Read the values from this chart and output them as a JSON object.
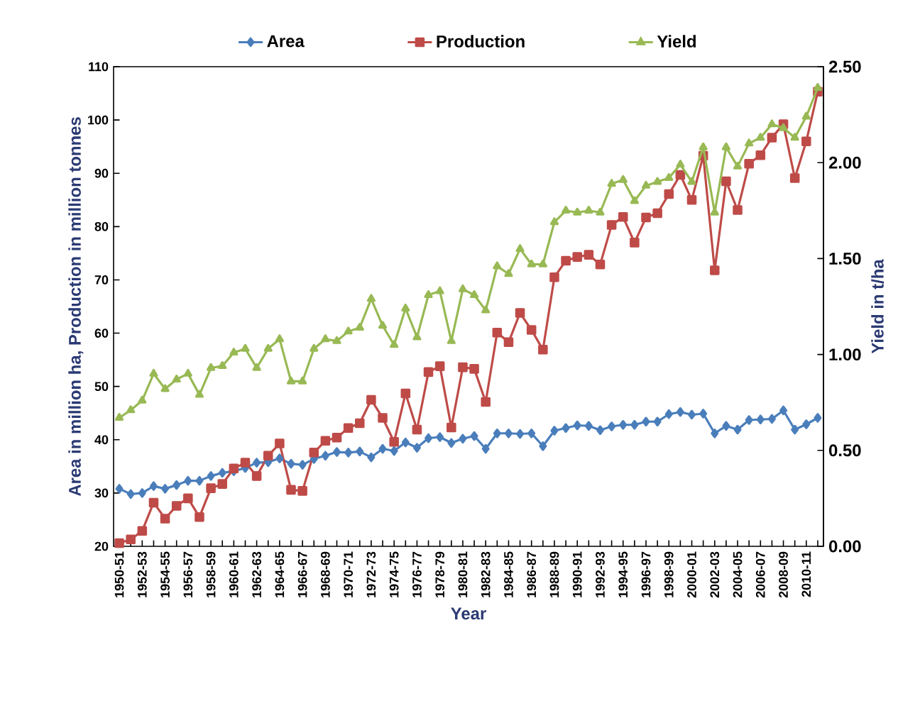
{
  "chart_data": {
    "type": "line",
    "xlabel": "Year",
    "ylabel": "Area in million ha, Production in million tonnes",
    "y2label": "Yield in t/ha",
    "categories": [
      "1950-51",
      null,
      "1952-53",
      null,
      "1954-55",
      null,
      "1956-57",
      null,
      "1958-59",
      null,
      "1960-61",
      null,
      "1962-63",
      null,
      "1964-65",
      null,
      "1966-67",
      null,
      "1968-69",
      null,
      "1970-71",
      null,
      "1972-73",
      null,
      "1974-75",
      null,
      "1976-77",
      null,
      "1978-79",
      null,
      "1980-81",
      null,
      "1982-83",
      null,
      "1984-85",
      null,
      "1986-87",
      null,
      "1988-89",
      null,
      "1990-91",
      null,
      "1992-93",
      null,
      "1994-95",
      null,
      "1996-97",
      null,
      "1998-99",
      null,
      "2000-01",
      null,
      "2002-03",
      null,
      "2004-05",
      null,
      "2006-07",
      null,
      "2008-09",
      null,
      "2010-11",
      null
    ],
    "series": [
      {
        "name": "Area",
        "color": "#4a7ebb",
        "marker": "diamond",
        "values": [
          30.8,
          29.8,
          30.0,
          31.3,
          30.8,
          31.5,
          32.3,
          32.3,
          33.2,
          33.8,
          34.1,
          34.7,
          35.7,
          35.8,
          36.5,
          35.5,
          35.3,
          36.4,
          37.0,
          37.7,
          37.6,
          37.8,
          36.7,
          38.3,
          37.9,
          39.5,
          38.5,
          40.3,
          40.5,
          39.4,
          40.2,
          40.7,
          38.3,
          41.2,
          41.2,
          41.1,
          41.2,
          38.8,
          41.7,
          42.2,
          42.7,
          42.6,
          41.8,
          42.5,
          42.8,
          42.8,
          43.4,
          43.4,
          44.8,
          45.2,
          44.7,
          44.9,
          41.2,
          42.6,
          41.9,
          43.7,
          43.8,
          43.9,
          45.5,
          41.9,
          42.9,
          44.1
        ]
      },
      {
        "name": "Production",
        "color": "#be4b48",
        "marker": "square",
        "values": [
          20.6,
          21.3,
          22.9,
          28.2,
          25.2,
          27.6,
          29.0,
          25.5,
          30.9,
          31.7,
          34.6,
          35.7,
          33.2,
          37.0,
          39.3,
          30.6,
          30.4,
          37.6,
          39.8,
          40.4,
          42.2,
          43.1,
          47.5,
          44.1,
          39.6,
          48.7,
          41.9,
          52.7,
          53.8,
          42.3,
          53.6,
          53.3,
          47.1,
          60.1,
          58.3,
          63.8,
          60.6,
          56.9,
          70.5,
          73.6,
          74.3,
          74.7,
          72.9,
          80.3,
          81.8,
          77.0,
          81.7,
          82.5,
          86.1,
          89.7,
          85.0,
          93.3,
          71.8,
          88.5,
          83.1,
          91.8,
          93.4,
          96.7,
          99.2,
          89.1,
          96.0,
          105.3
        ]
      },
      {
        "name": "Yield",
        "color": "#98b954",
        "marker": "triangle",
        "axis": "y2",
        "values": [
          0.67,
          0.71,
          0.76,
          0.9,
          0.82,
          0.87,
          0.9,
          0.79,
          0.93,
          0.94,
          1.01,
          1.03,
          0.93,
          1.03,
          1.08,
          0.86,
          0.86,
          1.03,
          1.08,
          1.07,
          1.12,
          1.14,
          1.29,
          1.15,
          1.05,
          1.24,
          1.09,
          1.31,
          1.33,
          1.07,
          1.34,
          1.31,
          1.23,
          1.46,
          1.42,
          1.55,
          1.47,
          1.47,
          1.69,
          1.75,
          1.74,
          1.75,
          1.74,
          1.89,
          1.91,
          1.8,
          1.88,
          1.9,
          1.92,
          1.99,
          1.9,
          2.08,
          1.74,
          2.08,
          1.98,
          2.1,
          2.13,
          2.2,
          2.18,
          2.13,
          2.24,
          2.39
        ]
      }
    ],
    "ylim": [
      20,
      110
    ],
    "yticks": [
      20,
      30,
      40,
      50,
      60,
      70,
      80,
      90,
      100,
      110
    ],
    "y2lim": [
      0,
      2.5
    ],
    "y2ticks": [
      {
        "value": 0,
        "label": "0.00"
      },
      {
        "value": 0.5,
        "label": "0.50"
      },
      {
        "value": 1,
        "label": "1.00"
      },
      {
        "value": 1.5,
        "label": "1.50"
      },
      {
        "value": 2,
        "label": "2.00"
      },
      {
        "value": 2.5,
        "label": "2.50"
      }
    ],
    "legend": "top",
    "grid": false,
    "line_style": "solid"
  }
}
